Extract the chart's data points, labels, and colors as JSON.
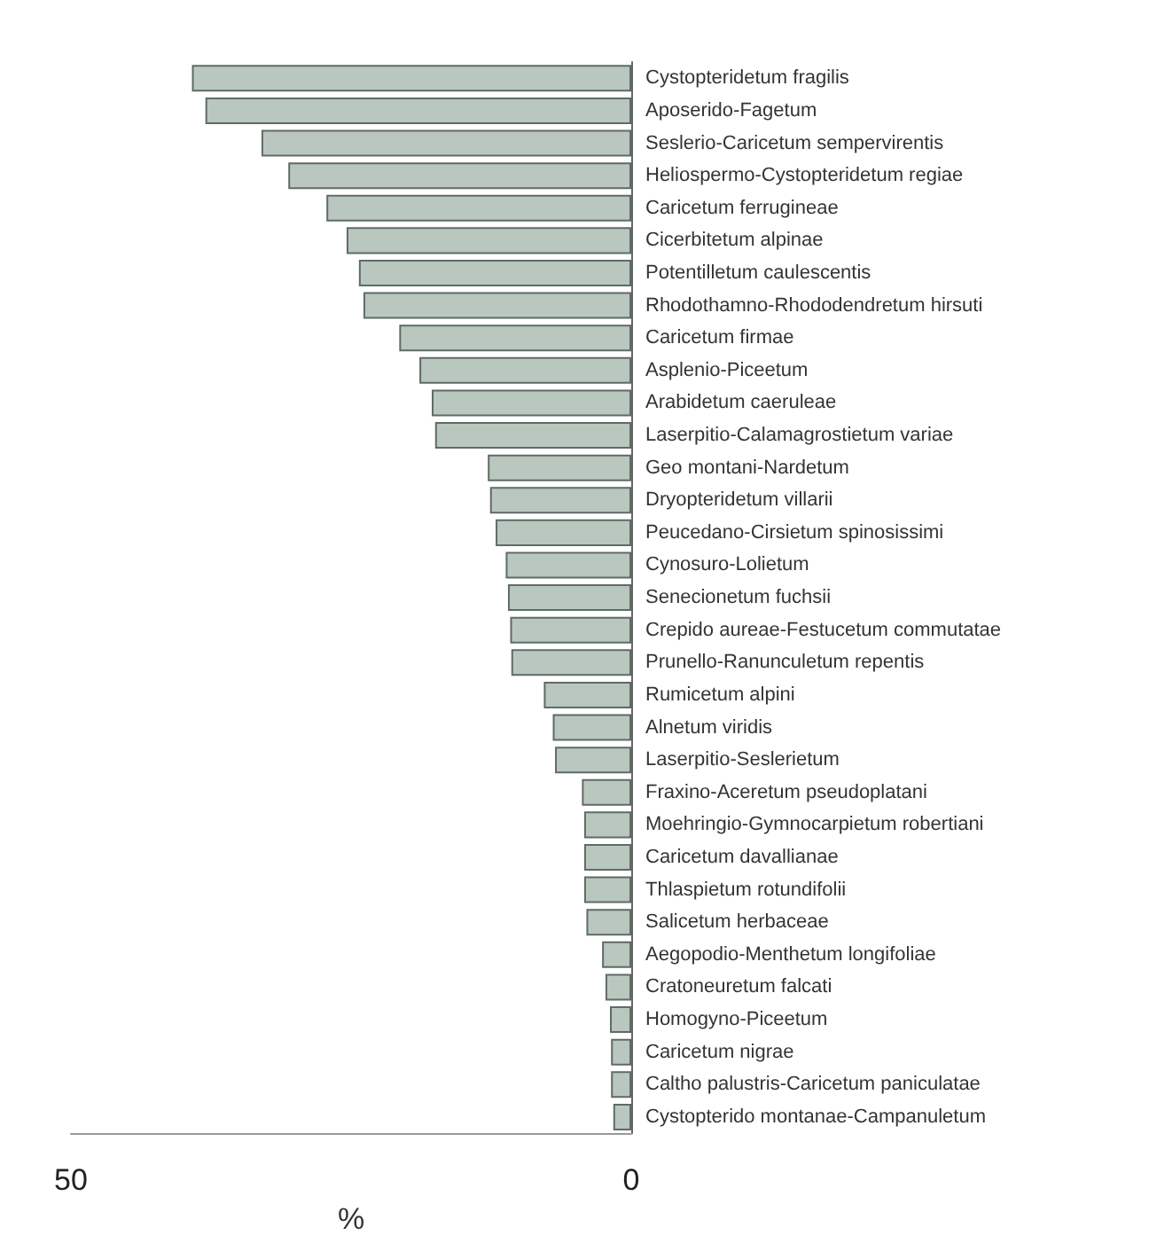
{
  "chart_data": {
    "type": "bar",
    "orientation": "horizontal",
    "xlabel": "%",
    "categories": [
      "Cystopteridetum fragilis",
      "Aposerido-Fagetum",
      "Seslerio-Caricetum sempervirentis",
      "Heliospermo-Cystopteridetum regiae",
      "Caricetum ferrugineae",
      "Cicerbitetum alpinae",
      "Potentilletum caulescentis",
      "Rhodothamno-Rhododendretum hirsuti",
      "Caricetum firmae",
      "Asplenio-Piceetum",
      "Arabidetum caeruleae",
      "Laserpitio-Calamagrostietum variae",
      "Geo montani-Nardetum",
      "Dryopteridetum villarii",
      "Peucedano-Cirsietum spinosissimi",
      "Cynosuro-Lolietum",
      "Senecionetum fuchsii",
      "Crepido aureae-Festucetum commutatae",
      "Prunello-Ranunculetum repentis",
      "Rumicetum alpini",
      "Alnetum viridis",
      "Laserpitio-Seslerietum",
      "Fraxino-Aceretum pseudoplatani",
      "Moehringio-Gymnocarpietum robertiani",
      "Caricetum davallianae",
      "Thlaspietum rotundifolii",
      "Salicetum herbaceae",
      "Aegopodio-Menthetum longifoliae",
      "Cratoneuretum falcati",
      "Homogyno-Piceetum",
      "Caricetum nigrae",
      "Caltho palustris-Caricetum paniculatae",
      "Cystopterido montanae-Campanuletum"
    ],
    "values": [
      39.2,
      38.0,
      33.0,
      30.6,
      27.2,
      25.4,
      24.3,
      23.9,
      20.7,
      18.9,
      17.8,
      17.5,
      12.8,
      12.6,
      12.1,
      11.2,
      11.0,
      10.8,
      10.7,
      7.8,
      7.0,
      6.8,
      4.4,
      4.2,
      4.2,
      4.2,
      4.0,
      2.6,
      2.3,
      1.9,
      1.8,
      1.8,
      1.6
    ],
    "color": "#b9c7bf",
    "xlim": [
      50,
      0
    ],
    "xticks": [
      50,
      0
    ],
    "grid": false
  }
}
